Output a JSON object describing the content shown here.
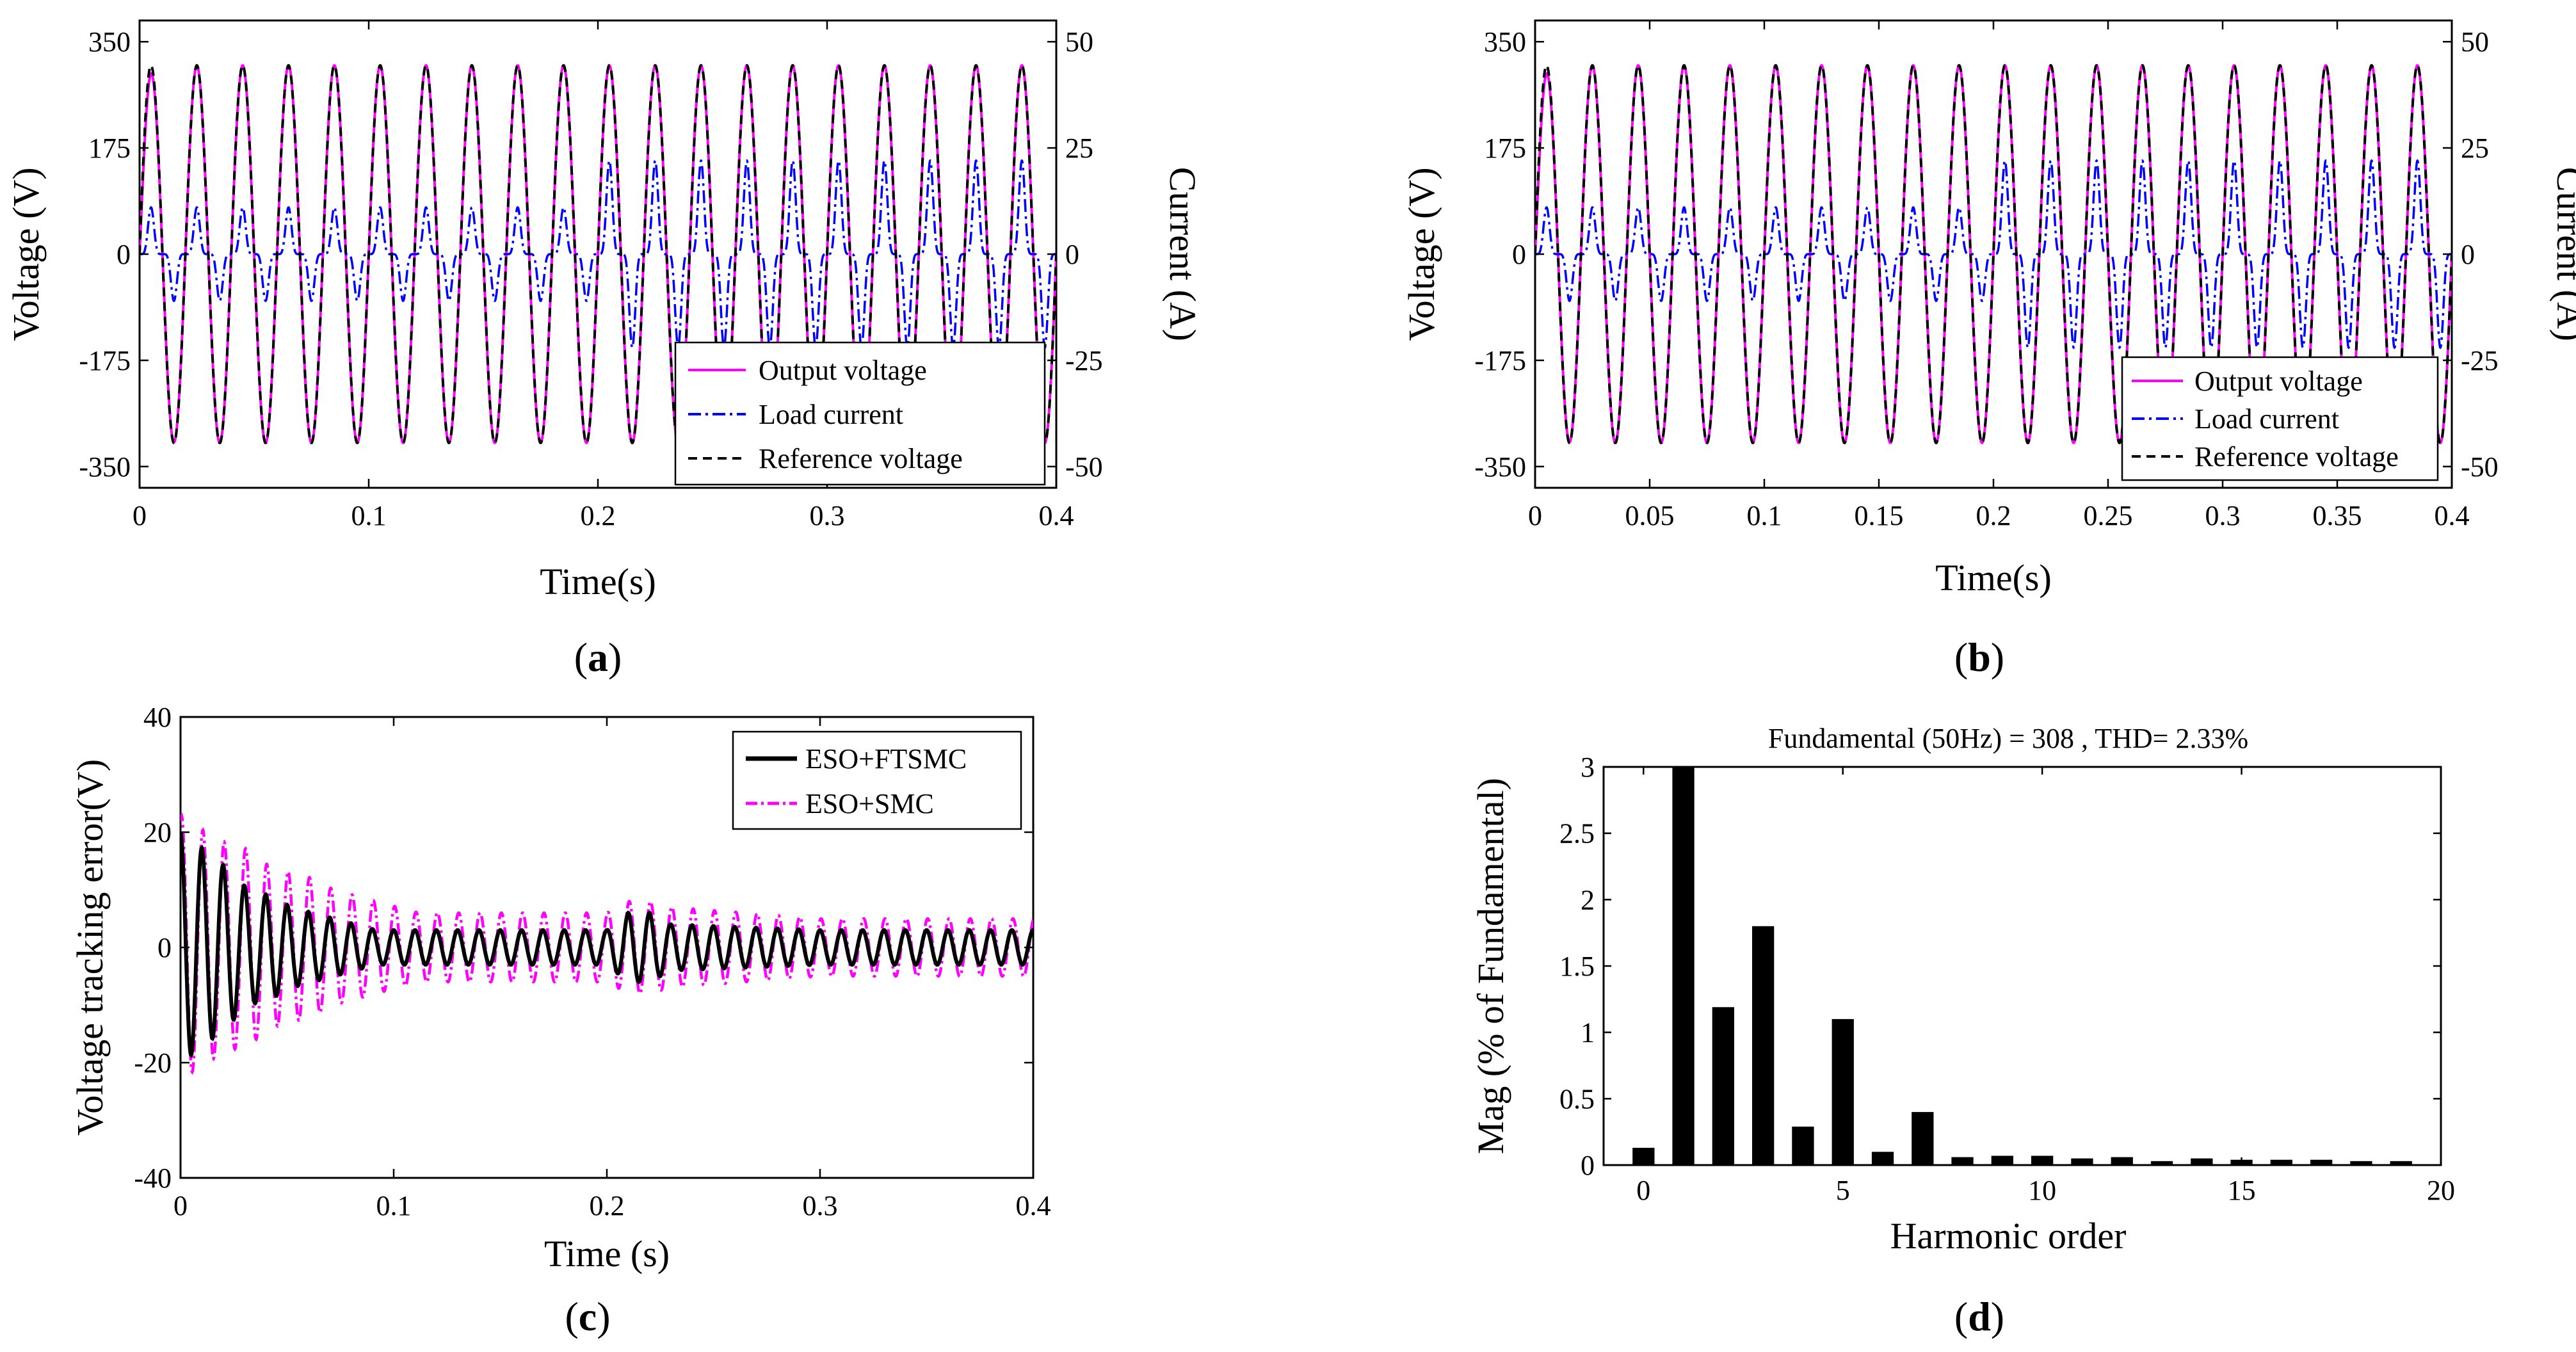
{
  "chart_data": [
    {
      "type": "line",
      "panel": "a",
      "caption": {
        "open": "(",
        "letter": "a",
        "close": ")"
      },
      "xlabel": "Time(s)",
      "ylabel_left": "Voltage (V)",
      "ylabel_right": "Current (A)",
      "xlim": [
        0,
        0.4
      ],
      "ylim_left": [
        -385,
        385
      ],
      "ylim_right": [
        -55,
        55
      ],
      "xticks": [
        "0",
        "0.1",
        "0.2",
        "0.3",
        "0.4"
      ],
      "yticks_left": [
        "350",
        "175",
        "0",
        "-175",
        "-350"
      ],
      "yticks_right": [
        "50",
        "25",
        "0",
        "-25",
        "-50"
      ],
      "legend_position": "bottom-right",
      "series": [
        {
          "name": "Output voltage",
          "color": "#ff00ff",
          "style": "solid",
          "axis": "left",
          "amplitude": 311,
          "frequency_hz": 50
        },
        {
          "name": "Load current",
          "color": "#0000ff",
          "style": "dashdot",
          "axis": "right",
          "waveform": "nonlinear-load pulses",
          "peaks": [
            {
              "t_from": 0,
              "t_to": 0.2,
              "peak": 11
            },
            {
              "t_from": 0.2,
              "t_to": 0.4,
              "peak": 22
            }
          ]
        },
        {
          "name": "Reference voltage",
          "color": "#000000",
          "style": "dashed",
          "axis": "left",
          "amplitude": 311,
          "frequency_hz": 50
        }
      ]
    },
    {
      "type": "line",
      "panel": "b",
      "caption": {
        "open": "(",
        "letter": "b",
        "close": ")"
      },
      "xlabel": "Time(s)",
      "ylabel_left": "Voltage (V)",
      "ylabel_right": "Current (A)",
      "xlim": [
        0,
        0.4
      ],
      "ylim_left": [
        -385,
        385
      ],
      "ylim_right": [
        -55,
        55
      ],
      "xticks": [
        "0",
        "0.05",
        "0.1",
        "0.15",
        "0.2",
        "0.25",
        "0.3",
        "0.35",
        "0.4"
      ],
      "yticks_left": [
        "350",
        "175",
        "0",
        "-175",
        "-350"
      ],
      "yticks_right": [
        "50",
        "25",
        "0",
        "-25",
        "-50"
      ],
      "legend_position": "bottom-right",
      "series": [
        {
          "name": "Output voltage",
          "color": "#ff00ff",
          "style": "solid",
          "axis": "left",
          "amplitude": 311,
          "frequency_hz": 50
        },
        {
          "name": "Load current",
          "color": "#0000ff",
          "style": "dashdot",
          "axis": "right",
          "waveform": "nonlinear-load pulses",
          "peaks": [
            {
              "t_from": 0,
              "t_to": 0.2,
              "peak": 11
            },
            {
              "t_from": 0.2,
              "t_to": 0.4,
              "peak": 22
            }
          ]
        },
        {
          "name": "Reference voltage",
          "color": "#000000",
          "style": "dashed",
          "axis": "left",
          "amplitude": 311,
          "frequency_hz": 50
        }
      ]
    },
    {
      "type": "line",
      "panel": "c",
      "caption": {
        "open": "(",
        "letter": "c",
        "close": ")"
      },
      "xlabel": "Time (s)",
      "ylabel": "Voltage tracking error(V)",
      "xlim": [
        0,
        0.4
      ],
      "ylim": [
        -40,
        40
      ],
      "xticks": [
        "0",
        "0.1",
        "0.2",
        "0.3",
        "0.4"
      ],
      "yticks": [
        "40",
        "20",
        "0",
        "-20",
        "-40"
      ],
      "legend_position": "top-right",
      "series": [
        {
          "name": "ESO+FTSMC",
          "color": "#000000",
          "style": "solid",
          "peaks": [
            [
              0,
              20
            ],
            [
              0.011,
              -17
            ],
            [
              0.021,
              14
            ],
            [
              0.032,
              -10
            ],
            [
              0.042,
              9
            ],
            [
              0.052,
              -7
            ],
            [
              0.062,
              6
            ],
            [
              0.072,
              -5
            ],
            [
              0.082,
              4
            ],
            [
              0.092,
              -3
            ],
            [
              0.1,
              3
            ],
            [
              0.2,
              3
            ],
            [
              0.21,
              -6
            ],
            [
              0.22,
              6
            ],
            [
              0.23,
              -4
            ],
            [
              0.3,
              3
            ],
            [
              0.4,
              3
            ]
          ]
        },
        {
          "name": "ESO+SMC",
          "color": "#ff00ff",
          "style": "dashdot",
          "peaks": [
            [
              0,
              23
            ],
            [
              0.012,
              -20
            ],
            [
              0.022,
              18
            ],
            [
              0.032,
              -17
            ],
            [
              0.042,
              14
            ],
            [
              0.052,
              -13
            ],
            [
              0.062,
              12
            ],
            [
              0.072,
              -10
            ],
            [
              0.082,
              9
            ],
            [
              0.092,
              -8
            ],
            [
              0.102,
              7
            ],
            [
              0.112,
              -6
            ],
            [
              0.2,
              6
            ],
            [
              0.21,
              -8
            ],
            [
              0.22,
              8
            ],
            [
              0.23,
              -7
            ],
            [
              0.3,
              5
            ],
            [
              0.4,
              5
            ]
          ]
        }
      ]
    },
    {
      "type": "bar",
      "panel": "d",
      "caption": {
        "open": "(",
        "letter": "d",
        "close": ")"
      },
      "title": "Fundamental (50Hz) = 308 , THD= 2.33%",
      "xlabel": "Harmonic order",
      "ylabel": "Mag (% of Fundamental)",
      "xlim": [
        -1,
        20
      ],
      "ylim": [
        0,
        3
      ],
      "xticks": [
        "0",
        "5",
        "10",
        "15",
        "20"
      ],
      "yticks": [
        "3",
        "2.5",
        "2",
        "1.5",
        "1",
        "0.5",
        "0"
      ],
      "bar_color": "#000000",
      "categories": [
        0,
        1,
        2,
        3,
        4,
        5,
        6,
        7,
        8,
        9,
        10,
        11,
        12,
        13,
        14,
        15,
        16,
        17,
        18,
        19
      ],
      "values": [
        0.13,
        3.0,
        1.19,
        1.8,
        0.29,
        1.1,
        0.1,
        0.4,
        0.06,
        0.07,
        0.07,
        0.05,
        0.06,
        0.03,
        0.05,
        0.04,
        0.04,
        0.04,
        0.03,
        0.03
      ]
    }
  ]
}
